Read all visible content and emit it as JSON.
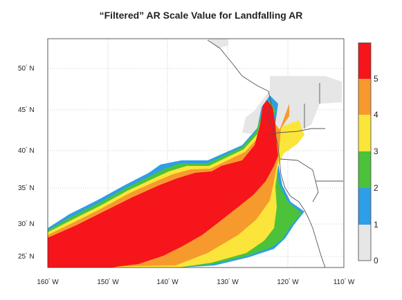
{
  "title": "“Filtered” AR Scale Value for Landfalling AR",
  "map": {
    "lon_labels": [
      {
        "deg": "160",
        "hem": "W"
      },
      {
        "deg": "150",
        "hem": "W"
      },
      {
        "deg": "140",
        "hem": "W"
      },
      {
        "deg": "130",
        "hem": "W"
      },
      {
        "deg": "120",
        "hem": "W"
      },
      {
        "deg": "110",
        "hem": "W"
      }
    ],
    "lat_labels": [
      {
        "deg": "50",
        "hem": "N"
      },
      {
        "deg": "45",
        "hem": "N"
      },
      {
        "deg": "40",
        "hem": "N"
      },
      {
        "deg": "35",
        "hem": "N"
      },
      {
        "deg": "30",
        "hem": "N"
      },
      {
        "deg": "25",
        "hem": "N"
      }
    ],
    "gridlines": true
  },
  "colorbar": {
    "labels": [
      "0",
      "1",
      "2",
      "3",
      "4",
      "5"
    ],
    "colors": [
      "#e6e6e6",
      "#2e9ee6",
      "#4cc23a",
      "#fbe53a",
      "#f79a2e",
      "#f5151b"
    ]
  }
}
